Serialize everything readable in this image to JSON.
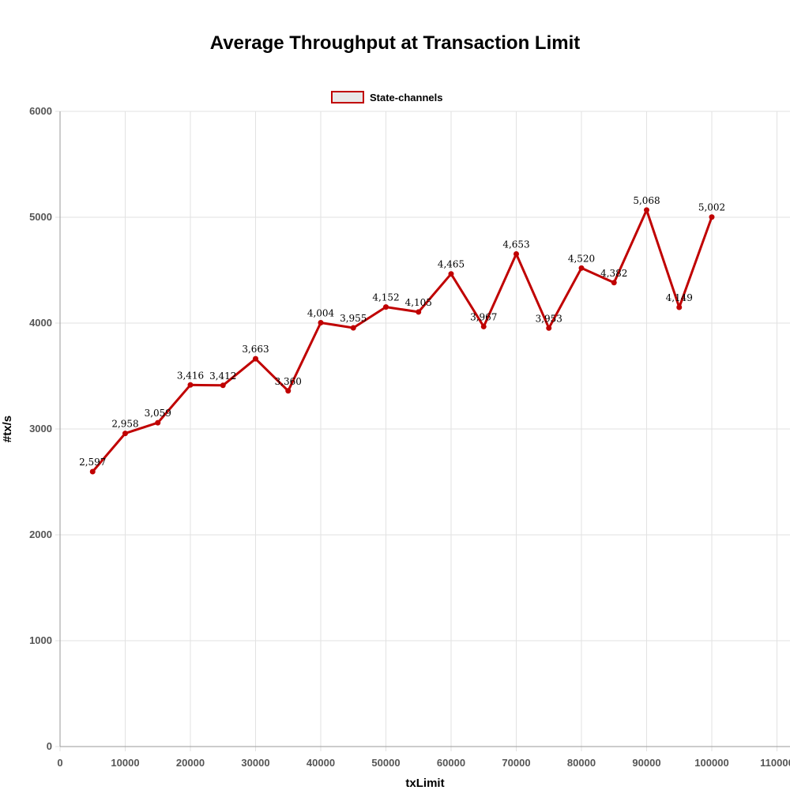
{
  "chart_data": {
    "type": "line",
    "title": "Average Throughput at Transaction Limit",
    "xlabel": "txLimit",
    "ylabel": "#tx/s",
    "xlim": [
      0,
      112000
    ],
    "ylim": [
      0,
      6000
    ],
    "x_ticks": [
      "0",
      "10000",
      "20000",
      "30000",
      "40000",
      "50000",
      "60000",
      "70000",
      "80000",
      "90000",
      "100000",
      "110000"
    ],
    "y_ticks": [
      "0",
      "1000",
      "2000",
      "3000",
      "4000",
      "5000",
      "6000"
    ],
    "grid": true,
    "legend_position": "top",
    "series": [
      {
        "name": "State-channels",
        "color": "#c00000",
        "points": [
          {
            "x": 5000,
            "y": 2597,
            "label": "2,597"
          },
          {
            "x": 10000,
            "y": 2958,
            "label": "2,958"
          },
          {
            "x": 15000,
            "y": 3059,
            "label": "3,059"
          },
          {
            "x": 20000,
            "y": 3416,
            "label": "3,416"
          },
          {
            "x": 25000,
            "y": 3412,
            "label": "3,412"
          },
          {
            "x": 30000,
            "y": 3663,
            "label": "3,663"
          },
          {
            "x": 35000,
            "y": 3360,
            "label": "3,360"
          },
          {
            "x": 40000,
            "y": 4004,
            "label": "4,004"
          },
          {
            "x": 45000,
            "y": 3955,
            "label": "3,955"
          },
          {
            "x": 50000,
            "y": 4152,
            "label": "4,152"
          },
          {
            "x": 55000,
            "y": 4105,
            "label": "4,105"
          },
          {
            "x": 60000,
            "y": 4465,
            "label": "4,465"
          },
          {
            "x": 65000,
            "y": 3967,
            "label": "3,967"
          },
          {
            "x": 70000,
            "y": 4653,
            "label": "4,653"
          },
          {
            "x": 75000,
            "y": 3953,
            "label": "3,953"
          },
          {
            "x": 80000,
            "y": 4520,
            "label": "4,520"
          },
          {
            "x": 85000,
            "y": 4382,
            "label": "4,382"
          },
          {
            "x": 90000,
            "y": 5068,
            "label": "5,068"
          },
          {
            "x": 95000,
            "y": 4149,
            "label": "4,149"
          },
          {
            "x": 100000,
            "y": 5002,
            "label": "5,002"
          }
        ]
      }
    ]
  }
}
